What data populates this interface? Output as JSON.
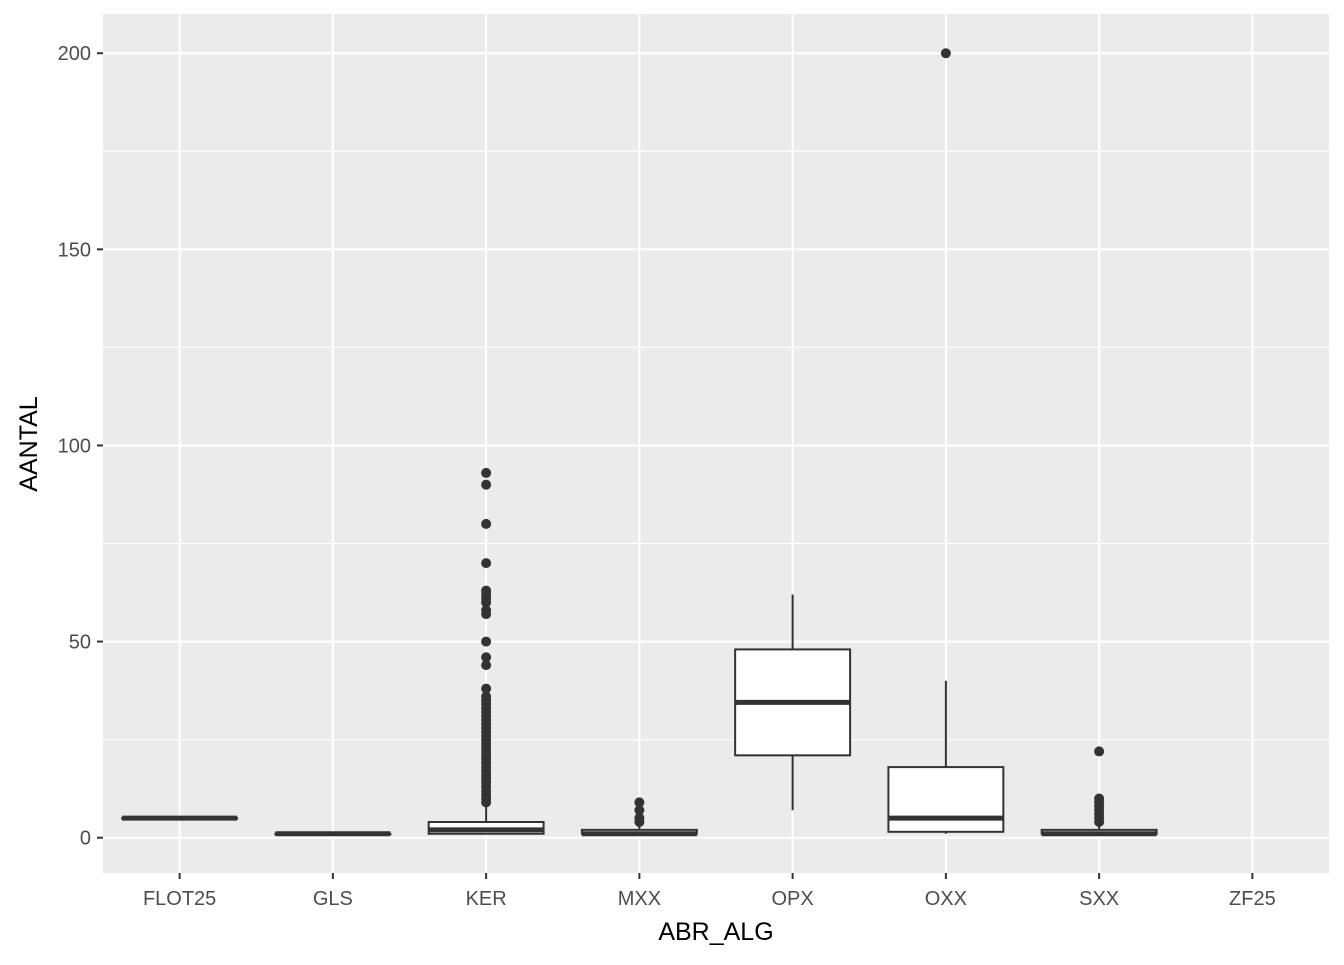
{
  "chart_data": {
    "type": "boxplot",
    "xlabel": "ABR_ALG",
    "ylabel": "AANTAL",
    "categories": [
      "FLOT25",
      "GLS",
      "KER",
      "MXX",
      "OPX",
      "OXX",
      "SXX",
      "ZF25"
    ],
    "yticks": [
      0,
      50,
      100,
      150,
      200
    ],
    "ylim": [
      -9,
      210
    ],
    "grid": true,
    "legend": "none",
    "colors": {
      "panel": "#ebebeb",
      "grid": "#ffffff",
      "box_fill": "#ffffff",
      "box_line": "#333333",
      "outlier": "#333333",
      "tick_text": "#4d4d4d",
      "tick_mark": "#333333"
    },
    "boxes": [
      {
        "category": "FLOT25",
        "min": 5,
        "q1": 5,
        "median": 5,
        "q3": 5,
        "max": 5,
        "outliers": []
      },
      {
        "category": "GLS",
        "min": 1,
        "q1": 1,
        "median": 1,
        "q3": 1,
        "max": 1,
        "outliers": []
      },
      {
        "category": "KER",
        "min": 1,
        "q1": 1,
        "median": 2,
        "q3": 4,
        "max": 8,
        "outliers": [
          9,
          10,
          11,
          12,
          13,
          14,
          15,
          16,
          17,
          18,
          19,
          20,
          21,
          22,
          23,
          24,
          25,
          26,
          27,
          28,
          29,
          30,
          31,
          32,
          33,
          34,
          35,
          36,
          38,
          44,
          46,
          50,
          57,
          58,
          60,
          61,
          62,
          63,
          70,
          80,
          90,
          93
        ]
      },
      {
        "category": "MXX",
        "min": 1,
        "q1": 1,
        "median": 1,
        "q3": 2,
        "max": 3,
        "outliers": [
          4,
          5,
          7,
          9
        ]
      },
      {
        "category": "OPX",
        "min": 7,
        "q1": 21,
        "median": 34.5,
        "q3": 48,
        "max": 62,
        "outliers": []
      },
      {
        "category": "OXX",
        "min": 1,
        "q1": 1.5,
        "median": 5,
        "q3": 18,
        "max": 40,
        "outliers": [
          200
        ]
      },
      {
        "category": "SXX",
        "min": 1,
        "q1": 1,
        "median": 1,
        "q3": 2,
        "max": 3,
        "outliers": [
          4,
          5,
          6,
          7,
          8,
          9,
          10,
          22
        ]
      },
      {
        "category": "ZF25",
        "min": null,
        "q1": null,
        "median": null,
        "q3": null,
        "max": null,
        "outliers": []
      }
    ]
  }
}
